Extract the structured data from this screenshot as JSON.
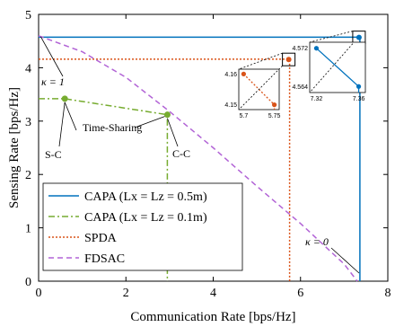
{
  "chart_data": {
    "type": "line",
    "xlabel": "Communication Rate [bps/Hz]",
    "ylabel": "Sensing Rate [bps/Hz]",
    "xlim": [
      0,
      8
    ],
    "ylim": [
      0,
      5
    ],
    "xticks": [
      "0",
      "2",
      "4",
      "6",
      "8"
    ],
    "yticks": [
      "0",
      "1",
      "2",
      "3",
      "4",
      "5"
    ],
    "grid": false,
    "legend_position": "bottom-left",
    "series": [
      {
        "name": "CAPA (Lx = Lz = 0.5m)",
        "color": "#0072BD",
        "style": "solid",
        "x": [
          0,
          7.32,
          7.36,
          7.36
        ],
        "y": [
          4.572,
          4.572,
          4.564,
          0
        ]
      },
      {
        "name": "CAPA (Lx = Lz = 0.1m)",
        "color": "#77AC30",
        "style": "dashdot",
        "x": [
          0,
          0.6,
          2.95,
          2.95
        ],
        "y": [
          3.42,
          3.42,
          3.12,
          0
        ]
      },
      {
        "name": "SPDA",
        "color": "#D95319",
        "style": "dotted",
        "x": [
          0,
          5.7,
          5.75,
          5.75
        ],
        "y": [
          4.16,
          4.16,
          4.15,
          0
        ]
      },
      {
        "name": "FDSAC",
        "color": "#B264D6",
        "style": "dashed",
        "x": [
          0,
          1,
          2,
          3,
          4,
          5,
          6,
          7,
          7.3
        ],
        "y": [
          4.6,
          4.3,
          3.82,
          3.18,
          2.5,
          1.78,
          1.08,
          0.32,
          0
        ]
      }
    ],
    "annotations": {
      "kappa1": "κ = 1",
      "kappa0": "κ = 0",
      "sc": "S-C",
      "cc": "C-C",
      "ts": "Time-Sharing"
    },
    "insets": [
      {
        "series": "SPDA",
        "x": [
          5.7,
          5.75
        ],
        "y": [
          4.16,
          4.15
        ],
        "xticks": [
          "5.7",
          "5.75"
        ],
        "yticks": [
          "4.16",
          "4.15"
        ]
      },
      {
        "series": "CAPA (Lx = Lz = 0.5m)",
        "x": [
          7.32,
          7.36
        ],
        "y": [
          4.572,
          4.564
        ],
        "xticks": [
          "7.32",
          "7.36"
        ],
        "yticks": [
          "4.572",
          "4.564"
        ]
      }
    ]
  }
}
